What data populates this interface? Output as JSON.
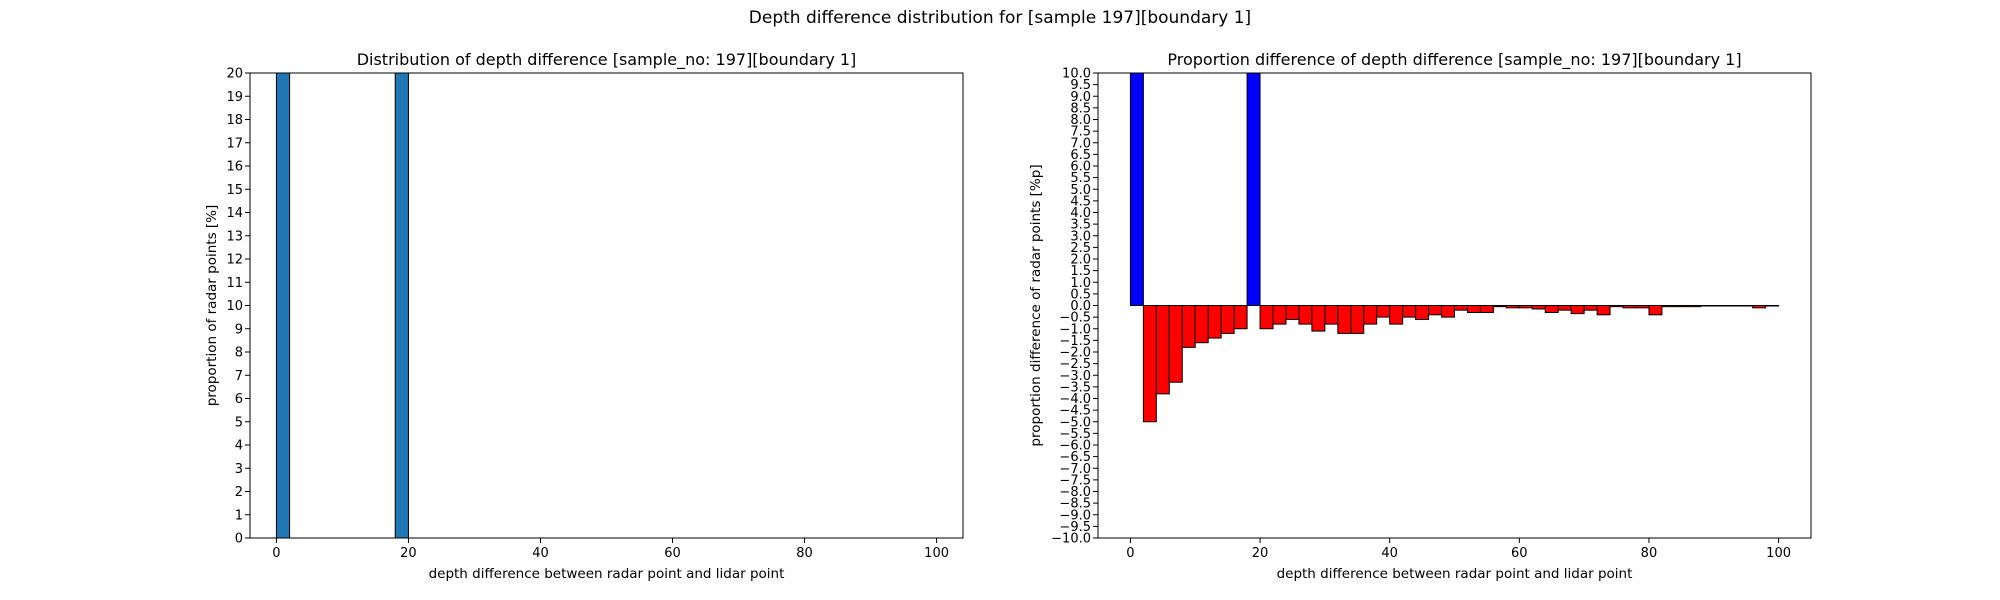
{
  "figure": {
    "suptitle": "Depth difference distribution for [sample 197][boundary 1]"
  },
  "chart_data": [
    {
      "type": "bar",
      "title": "Distribution of depth difference [sample_no: 197][boundary 1]",
      "xlabel": "depth difference between radar point and lidar point",
      "ylabel": "proportion of radar points [%]",
      "xlim": [
        -4,
        104
      ],
      "ylim": [
        0,
        20
      ],
      "xticks": [
        0,
        20,
        40,
        60,
        80,
        100
      ],
      "yticks": [
        0,
        1,
        2,
        3,
        4,
        5,
        6,
        7,
        8,
        9,
        10,
        11,
        12,
        13,
        14,
        15,
        16,
        17,
        18,
        19,
        20
      ],
      "bin_width": 2,
      "bars": [
        {
          "x0": 0,
          "x1": 2,
          "value": 20,
          "clipped": true
        },
        {
          "x0": 18,
          "x1": 20,
          "value": 20,
          "clipped": true
        }
      ],
      "bar_color": "#1f77b4",
      "grid": false
    },
    {
      "type": "bar",
      "title": "Proportion difference of depth difference [sample_no: 197][boundary 1]",
      "xlabel": "depth difference between radar point and lidar point",
      "ylabel": "proportion difference of radar points [%p]",
      "xlim": [
        -5,
        105
      ],
      "ylim": [
        -10,
        10
      ],
      "xticks": [
        0,
        20,
        40,
        60,
        80,
        100
      ],
      "ytick_step": 0.5,
      "bin_width": 2,
      "bar_starts": [
        0,
        2,
        4,
        6,
        8,
        10,
        12,
        14,
        16,
        18,
        20,
        22,
        24,
        26,
        28,
        30,
        32,
        34,
        36,
        38,
        40,
        42,
        44,
        46,
        48,
        50,
        52,
        54,
        56,
        58,
        60,
        62,
        64,
        66,
        68,
        70,
        72,
        74,
        76,
        78,
        80,
        82,
        84,
        86,
        88,
        90,
        92,
        94,
        96,
        98
      ],
      "values": [
        10,
        -5,
        -3.8,
        -3.3,
        -1.8,
        -1.6,
        -1.4,
        -1.2,
        -1.0,
        10,
        -1.0,
        -0.8,
        -0.6,
        -0.8,
        -1.1,
        -0.8,
        -1.2,
        -1.2,
        -0.8,
        -0.5,
        -0.8,
        -0.5,
        -0.6,
        -0.4,
        -0.5,
        -0.2,
        -0.3,
        -0.3,
        -0.05,
        -0.1,
        -0.1,
        -0.15,
        -0.3,
        -0.2,
        -0.35,
        -0.2,
        -0.4,
        -0.05,
        -0.1,
        -0.1,
        -0.4,
        -0.05,
        -0.05,
        -0.05,
        -0.02,
        -0.02,
        -0.02,
        -0.02,
        -0.1,
        -0.02
      ],
      "positive_color": "#0000ff",
      "negative_color": "#ff0000",
      "grid": false
    }
  ]
}
